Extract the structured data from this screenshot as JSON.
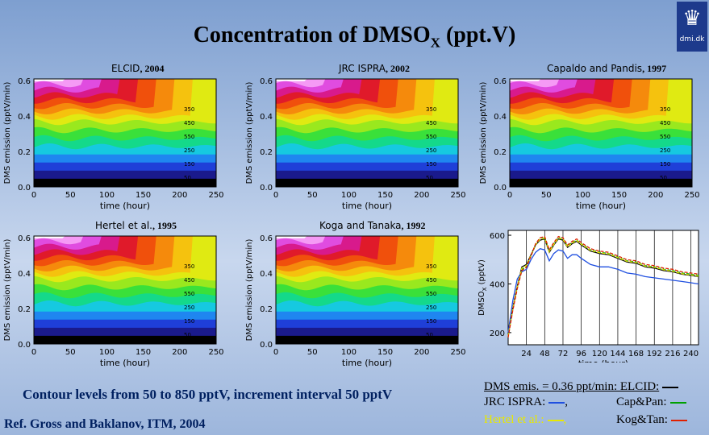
{
  "header": {
    "title_main": "Concentration of DMSO",
    "title_sub": "X",
    "title_unit": " (ppt.V)",
    "logo_text": "dmi.dk"
  },
  "contour_panels": [
    {
      "model": "ELCID",
      "year": ", 2004"
    },
    {
      "model": "JRC ISPRA",
      "year": ", 2002"
    },
    {
      "model": "Capaldo and Pandis",
      "year": ", 1997"
    },
    {
      "model": "Hertel et al.",
      "year": ", 1995"
    },
    {
      "model": "Koga and Tanaka",
      "year": ", 1992"
    }
  ],
  "contour_axes": {
    "xlabel": "time (hour)",
    "ylabel": "DMS emission (pptV/min)",
    "xticks": [
      "0",
      "50",
      "100",
      "150",
      "200",
      "250"
    ],
    "yticks": [
      "0.0",
      "0.2",
      "0.4",
      "0.6"
    ],
    "levels": [
      "350",
      "450",
      "550",
      "250",
      "150",
      "50"
    ]
  },
  "chart_data": {
    "type": "line",
    "title": "",
    "xlabel": "time (hour)",
    "ylabel": "DMSO",
    "ylabel_sub": "X",
    "ylabel_unit": " (pptV)",
    "xlim": [
      0,
      250
    ],
    "ylim": [
      150,
      620
    ],
    "xticks": [
      "24",
      "48",
      "72",
      "96",
      "120",
      "144",
      "168",
      "192",
      "216",
      "240"
    ],
    "yticks": [
      "200",
      "400",
      "600"
    ],
    "series": [
      {
        "name": "ELCID",
        "color": "#000000",
        "x": [
          0,
          6,
          12,
          18,
          24,
          30,
          36,
          42,
          48,
          54,
          60,
          66,
          72,
          78,
          84,
          90,
          96,
          108,
          120,
          132,
          144,
          156,
          168,
          180,
          192,
          204,
          216,
          228,
          240,
          250
        ],
        "values": [
          190,
          300,
          390,
          470,
          480,
          520,
          560,
          580,
          585,
          530,
          560,
          585,
          580,
          550,
          565,
          575,
          560,
          535,
          525,
          520,
          505,
          490,
          485,
          470,
          465,
          455,
          450,
          440,
          435,
          430
        ]
      },
      {
        "name": "JRC ISPRA",
        "color": "#1f4fe0",
        "x": [
          0,
          6,
          12,
          18,
          24,
          30,
          36,
          42,
          48,
          54,
          60,
          66,
          72,
          78,
          84,
          90,
          96,
          108,
          120,
          132,
          144,
          156,
          168,
          180,
          192,
          204,
          216,
          228,
          240,
          250
        ],
        "values": [
          200,
          330,
          420,
          450,
          460,
          500,
          530,
          545,
          540,
          495,
          525,
          540,
          535,
          505,
          520,
          520,
          505,
          480,
          470,
          470,
          460,
          445,
          440,
          430,
          425,
          420,
          415,
          410,
          405,
          400
        ]
      },
      {
        "name": "Cap&Pan",
        "color": "#00a000",
        "x": [
          0,
          6,
          12,
          18,
          24,
          30,
          36,
          42,
          48,
          54,
          60,
          66,
          72,
          78,
          84,
          90,
          96,
          108,
          120,
          132,
          144,
          156,
          168,
          180,
          192,
          204,
          216,
          228,
          240,
          250
        ],
        "values": [
          185,
          295,
          385,
          460,
          470,
          515,
          560,
          585,
          590,
          535,
          565,
          590,
          585,
          555,
          570,
          580,
          565,
          540,
          530,
          525,
          510,
          495,
          490,
          475,
          470,
          460,
          455,
          445,
          440,
          435
        ]
      },
      {
        "name": "Hertel et al.",
        "color": "#e8e800",
        "x": [
          0,
          6,
          12,
          18,
          24,
          30,
          36,
          42,
          48,
          54,
          60,
          66,
          72,
          78,
          84,
          90,
          96,
          108,
          120,
          132,
          144,
          156,
          168,
          180,
          192,
          204,
          216,
          228,
          240,
          250
        ],
        "values": [
          185,
          298,
          388,
          465,
          476,
          518,
          562,
          583,
          588,
          532,
          562,
          588,
          583,
          552,
          568,
          578,
          563,
          538,
          528,
          523,
          508,
          493,
          488,
          473,
          468,
          458,
          452,
          442,
          437,
          432
        ]
      },
      {
        "name": "Kog&Tan",
        "color": "#e02000",
        "x": [
          0,
          6,
          12,
          18,
          24,
          30,
          36,
          42,
          48,
          54,
          60,
          66,
          72,
          78,
          84,
          90,
          96,
          108,
          120,
          132,
          144,
          156,
          168,
          180,
          192,
          204,
          216,
          228,
          240,
          250
        ],
        "values": [
          180,
          290,
          380,
          455,
          468,
          515,
          565,
          590,
          595,
          540,
          570,
          595,
          590,
          560,
          575,
          585,
          570,
          545,
          535,
          530,
          515,
          500,
          495,
          480,
          475,
          465,
          460,
          450,
          445,
          440
        ]
      }
    ]
  },
  "footer": {
    "contour_note": "Contour levels from 50 to 850 pptV, increment interval 50 pptV",
    "reference": "Ref. Gross and Baklanov, ITM, 2004"
  },
  "legend": {
    "line1": "DMS emis. = 0.36 ppt/min: ELCID:",
    "jrc": "JRC ISPRA:",
    "jrc_sep": ",",
    "cappan": "Cap&Pan:",
    "hertel": "Hertel et al.:",
    "hertel_sep": ",",
    "kogtan": "Kog&Tan:"
  }
}
